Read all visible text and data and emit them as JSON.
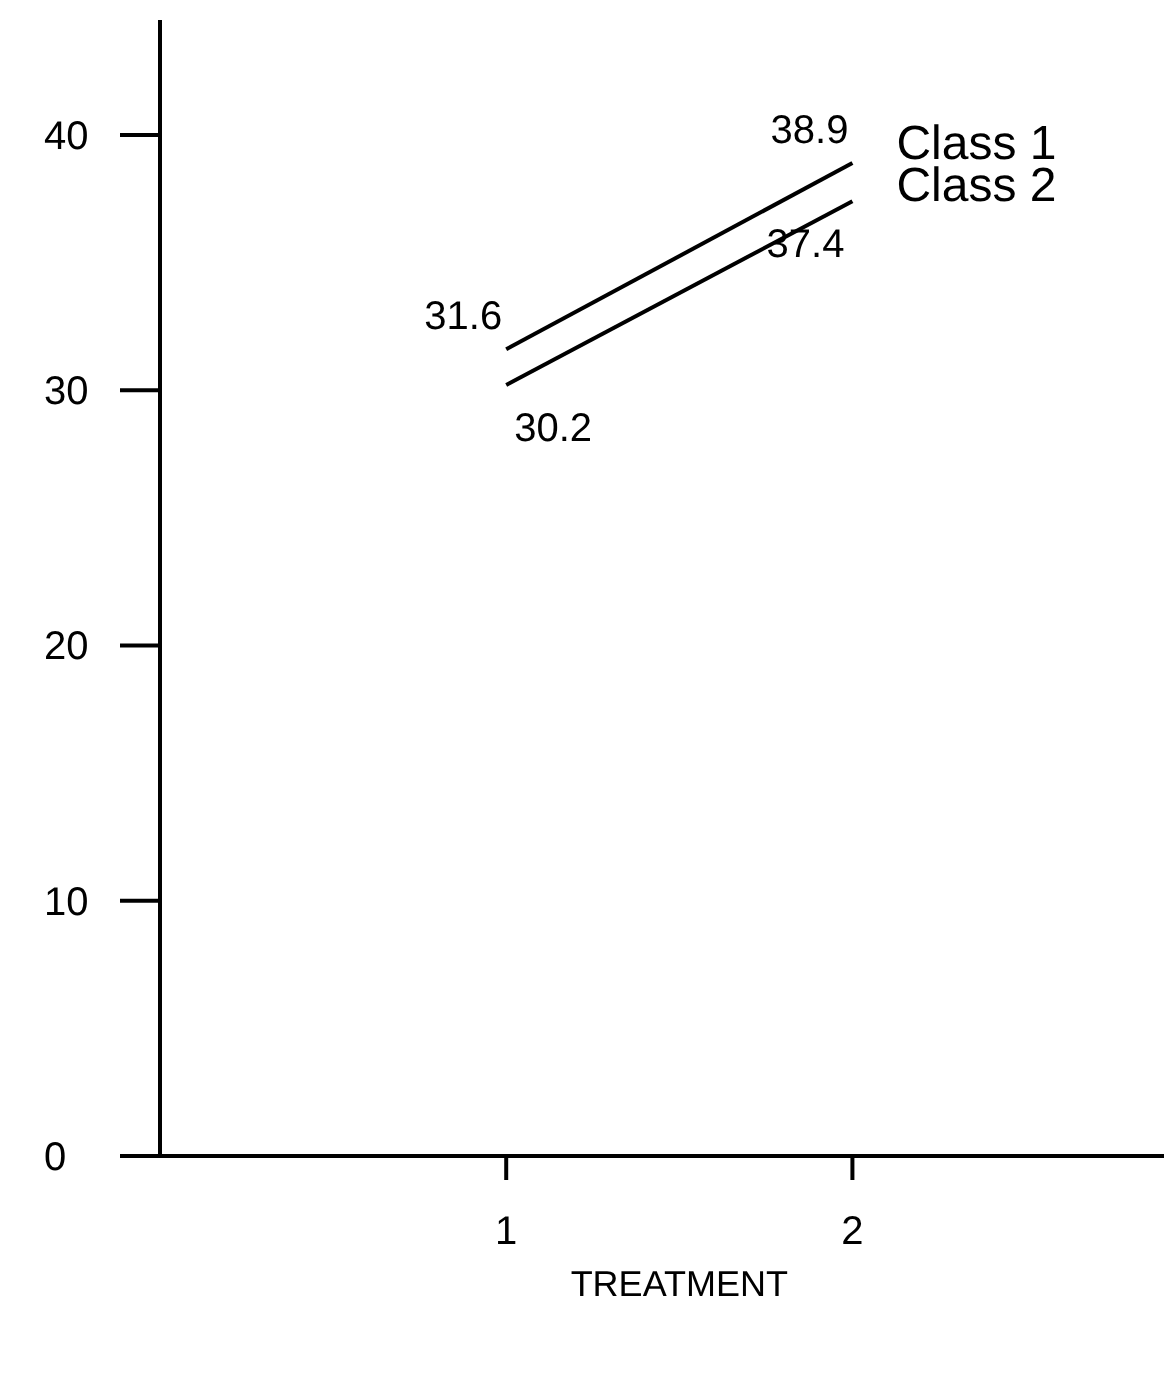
{
  "chart_data": {
    "type": "line",
    "xlabel": "TREATMENT",
    "x": [
      1,
      2
    ],
    "xlim": [
      0,
      2.9
    ],
    "xticks": [
      1,
      2
    ],
    "ylim": [
      0,
      44.5
    ],
    "yticks": [
      0,
      10,
      20,
      30,
      40
    ],
    "series": [
      {
        "name": "Class 1",
        "color": "#000000",
        "values": [
          31.6,
          38.9
        ]
      },
      {
        "name": "Class 2",
        "color": "#000000",
        "values": [
          30.2,
          37.4
        ]
      }
    ],
    "data_labels": true,
    "grid": false,
    "legend": false,
    "marker": "none",
    "line_style": "solid"
  }
}
